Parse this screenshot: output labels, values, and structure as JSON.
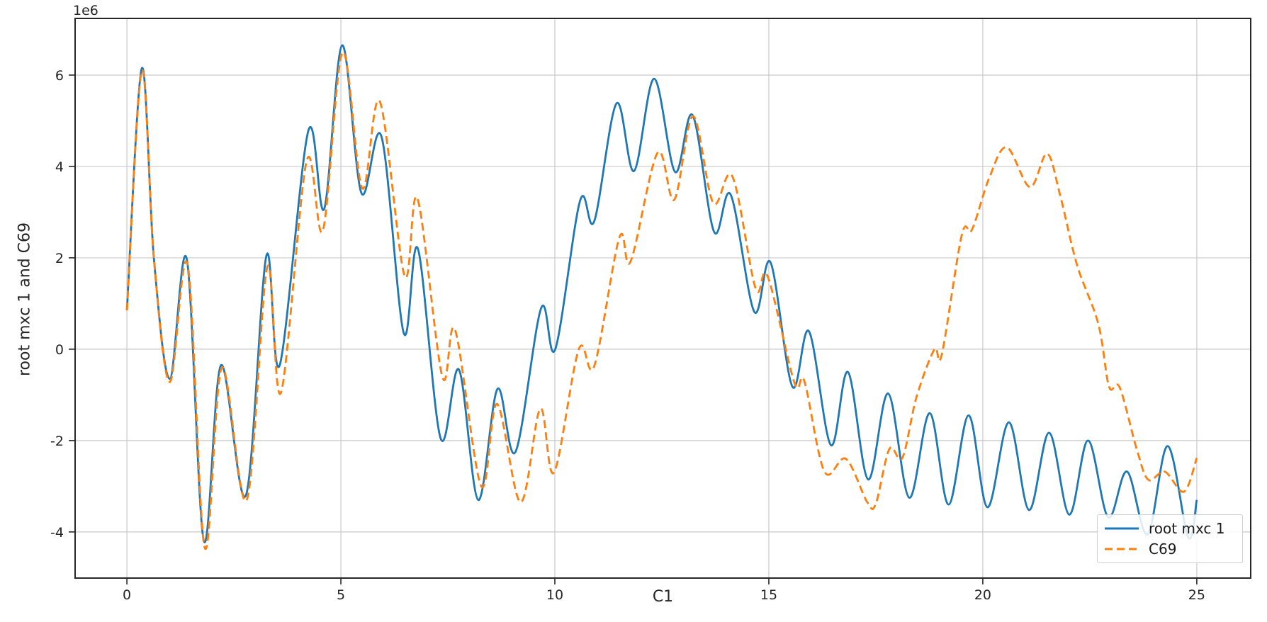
{
  "chart_data": {
    "type": "line",
    "title": "",
    "xlabel": "C1",
    "ylabel": "root mxc 1 and C69",
    "y_offset_label": "1e6",
    "y_values_unit": "values are in units of 1e6 (matching the axis offset label)",
    "xlim": [
      -1.21,
      26.26
    ],
    "ylim": [
      -5.01,
      7.24
    ],
    "x_ticks": [
      0,
      5,
      10,
      15,
      20,
      25
    ],
    "y_ticks": [
      -4,
      -2,
      0,
      2,
      4,
      6
    ],
    "grid": true,
    "legend_position": "lower right",
    "series": [
      {
        "name": "root mxc 1",
        "color": "#1f77b4",
        "style": "solid",
        "points": [
          [
            0,
            0.85
          ],
          [
            0.35,
            6.15
          ],
          [
            0.63,
            2.0
          ],
          [
            1.0,
            -0.65
          ],
          [
            1.4,
            1.97
          ],
          [
            1.8,
            -4.2
          ],
          [
            2.2,
            -0.35
          ],
          [
            2.78,
            -3.2
          ],
          [
            3.26,
            2.05
          ],
          [
            3.57,
            -0.35
          ],
          [
            4.24,
            4.78
          ],
          [
            4.61,
            3.07
          ],
          [
            5.03,
            6.65
          ],
          [
            5.48,
            3.42
          ],
          [
            5.95,
            4.65
          ],
          [
            6.47,
            0.35
          ],
          [
            6.8,
            2.2
          ],
          [
            7.33,
            -1.95
          ],
          [
            7.76,
            -0.45
          ],
          [
            8.21,
            -3.3
          ],
          [
            8.66,
            -0.87
          ],
          [
            9.08,
            -2.25
          ],
          [
            9.68,
            0.9
          ],
          [
            10.01,
            0.0
          ],
          [
            10.59,
            3.25
          ],
          [
            10.92,
            2.8
          ],
          [
            11.44,
            5.38
          ],
          [
            11.85,
            3.9
          ],
          [
            12.32,
            5.92
          ],
          [
            12.81,
            3.88
          ],
          [
            13.22,
            5.12
          ],
          [
            13.72,
            2.57
          ],
          [
            14.11,
            3.38
          ],
          [
            14.66,
            0.82
          ],
          [
            15.04,
            1.9
          ],
          [
            15.55,
            -0.82
          ],
          [
            15.94,
            0.39
          ],
          [
            16.45,
            -2.1
          ],
          [
            16.85,
            -0.5
          ],
          [
            17.32,
            -2.85
          ],
          [
            17.79,
            -0.97
          ],
          [
            18.28,
            -3.25
          ],
          [
            18.76,
            -1.4
          ],
          [
            19.2,
            -3.4
          ],
          [
            19.67,
            -1.45
          ],
          [
            20.11,
            -3.46
          ],
          [
            20.61,
            -1.6
          ],
          [
            21.08,
            -3.52
          ],
          [
            21.55,
            -1.83
          ],
          [
            22.02,
            -3.62
          ],
          [
            22.46,
            -2.0
          ],
          [
            22.93,
            -3.68
          ],
          [
            23.37,
            -2.68
          ],
          [
            23.85,
            -4.05
          ],
          [
            24.32,
            -2.12
          ],
          [
            24.8,
            -4.12
          ],
          [
            25.0,
            -3.3
          ]
        ]
      },
      {
        "name": "C69",
        "color": "#ff7f0e",
        "style": "dashed",
        "points": [
          [
            0,
            0.85
          ],
          [
            0.35,
            6.1
          ],
          [
            0.63,
            2.0
          ],
          [
            1.0,
            -0.72
          ],
          [
            1.42,
            1.85
          ],
          [
            1.82,
            -4.35
          ],
          [
            2.22,
            -0.4
          ],
          [
            2.8,
            -3.3
          ],
          [
            3.28,
            1.8
          ],
          [
            3.6,
            -0.95
          ],
          [
            4.2,
            4.12
          ],
          [
            4.58,
            2.6
          ],
          [
            5.04,
            6.5
          ],
          [
            5.5,
            3.52
          ],
          [
            5.91,
            5.42
          ],
          [
            6.49,
            1.6
          ],
          [
            6.79,
            3.3
          ],
          [
            7.37,
            -0.6
          ],
          [
            7.67,
            0.42
          ],
          [
            8.28,
            -3.0
          ],
          [
            8.65,
            -1.2
          ],
          [
            9.2,
            -3.35
          ],
          [
            9.66,
            -1.3
          ],
          [
            9.98,
            -2.7
          ],
          [
            10.56,
            0.0
          ],
          [
            10.92,
            -0.37
          ],
          [
            11.51,
            2.45
          ],
          [
            11.77,
            1.92
          ],
          [
            12.4,
            4.3
          ],
          [
            12.79,
            3.27
          ],
          [
            13.23,
            5.1
          ],
          [
            13.7,
            3.2
          ],
          [
            14.15,
            3.78
          ],
          [
            14.69,
            1.33
          ],
          [
            14.97,
            1.6
          ],
          [
            15.6,
            -0.74
          ],
          [
            15.83,
            -0.7
          ],
          [
            16.3,
            -2.68
          ],
          [
            16.8,
            -2.4
          ],
          [
            17.3,
            -3.35
          ],
          [
            17.5,
            -3.38
          ],
          [
            17.82,
            -2.18
          ],
          [
            18.12,
            -2.38
          ],
          [
            18.45,
            -1.05
          ],
          [
            18.87,
            0.0
          ],
          [
            19.04,
            -0.12
          ],
          [
            19.51,
            2.5
          ],
          [
            19.75,
            2.62
          ],
          [
            20.15,
            3.75
          ],
          [
            20.56,
            4.42
          ],
          [
            21.1,
            3.55
          ],
          [
            21.5,
            4.28
          ],
          [
            21.8,
            3.4
          ],
          [
            22.2,
            1.85
          ],
          [
            22.7,
            0.55
          ],
          [
            22.95,
            -0.82
          ],
          [
            23.2,
            -0.84
          ],
          [
            23.6,
            -2.2
          ],
          [
            23.87,
            -2.86
          ],
          [
            24.25,
            -2.68
          ],
          [
            24.7,
            -3.12
          ],
          [
            25.0,
            -2.38
          ]
        ]
      }
    ]
  },
  "legend": {
    "entries": [
      {
        "label": "root mxc 1",
        "color": "#1f77b4",
        "style": "solid"
      },
      {
        "label": "C69",
        "color": "#ff7f0e",
        "style": "dashed"
      }
    ]
  },
  "colors": {
    "background": "#ffffff",
    "grid": "#c9c9c9",
    "spine": "#262626",
    "tick_text": "#262626",
    "series_blue": "#1f77b4",
    "series_orange": "#ff7f0e"
  }
}
